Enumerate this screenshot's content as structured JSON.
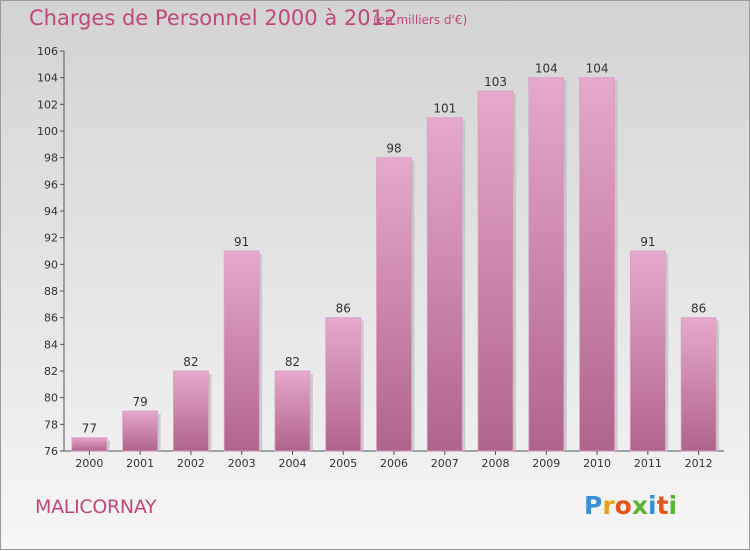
{
  "title": "Charges de Personnel 2000 à 2012",
  "unit_note": "(en milliers d'€)",
  "commune": "MALICORNAY",
  "logo": {
    "letters": [
      "P",
      "r",
      "o",
      "x",
      "i",
      "t",
      "i"
    ],
    "colors": [
      "#3a8fd8",
      "#e8a21a",
      "#e8531a",
      "#5bb531",
      "#3a8fd8",
      "#e8531a",
      "#5bb531"
    ]
  },
  "colors": {
    "accent": "#c0497b",
    "bar_top": "#e6a8cc",
    "bar_bottom": "#b0648d"
  },
  "chart_data": {
    "type": "bar",
    "categories": [
      "2000",
      "2001",
      "2002",
      "2003",
      "2004",
      "2005",
      "2006",
      "2007",
      "2008",
      "2009",
      "2010",
      "2011",
      "2012"
    ],
    "values": [
      77,
      79,
      82,
      91,
      82,
      86,
      98,
      101,
      103,
      104,
      104,
      91,
      86
    ],
    "ylim": [
      76,
      106
    ],
    "yticks": [
      76,
      78,
      80,
      82,
      84,
      86,
      88,
      90,
      92,
      94,
      96,
      98,
      100,
      102,
      104,
      106
    ],
    "data_labels": true,
    "grid": false
  }
}
